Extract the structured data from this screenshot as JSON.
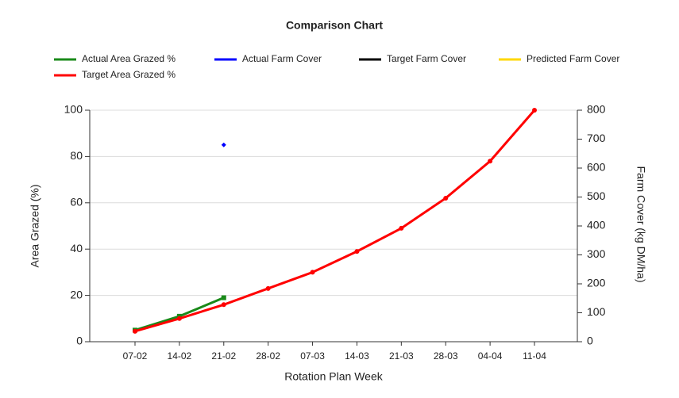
{
  "chart_data": {
    "type": "line",
    "title": "Comparison Chart",
    "x_label": "Rotation Plan Week",
    "y_label": "Area Grazed (%)",
    "y2_label": "Farm Cover (kg DM/ha)",
    "categories": [
      "07-02",
      "14-02",
      "21-02",
      "28-02",
      "07-03",
      "14-03",
      "21-03",
      "28-03",
      "04-04",
      "11-04"
    ],
    "series": [
      {
        "name": "Actual Area Grazed %",
        "color": "#1a8a1a",
        "axis": "y",
        "marker": "square",
        "values": [
          5,
          11,
          19,
          null,
          null,
          null,
          null,
          null,
          null,
          null
        ]
      },
      {
        "name": "Actual Farm Cover",
        "color": "#0000ff",
        "axis": "y2",
        "marker": "diamond",
        "values": [
          null,
          null,
          680,
          null,
          null,
          null,
          null,
          null,
          null,
          null
        ]
      },
      {
        "name": "Target Farm Cover",
        "color": "#000000",
        "axis": "y2",
        "marker": "circle",
        "values": [
          null,
          null,
          null,
          null,
          null,
          null,
          null,
          null,
          null,
          null
        ]
      },
      {
        "name": "Predicted Farm Cover",
        "color": "#ffd700",
        "axis": "y2",
        "marker": "circle",
        "values": [
          null,
          null,
          null,
          null,
          null,
          null,
          null,
          null,
          null,
          null
        ]
      },
      {
        "name": "Target Area Grazed %",
        "color": "#ff0000",
        "axis": "y",
        "marker": "circle",
        "values": [
          4.5,
          10,
          16,
          23,
          30,
          39,
          49,
          62,
          78,
          100
        ]
      }
    ],
    "ylim": [
      0,
      100
    ],
    "yticks": [
      0,
      20,
      40,
      60,
      80,
      100
    ],
    "y2lim": [
      0,
      800
    ],
    "y2ticks": [
      0,
      100,
      200,
      300,
      400,
      500,
      600,
      700,
      800
    ],
    "grid": true
  }
}
